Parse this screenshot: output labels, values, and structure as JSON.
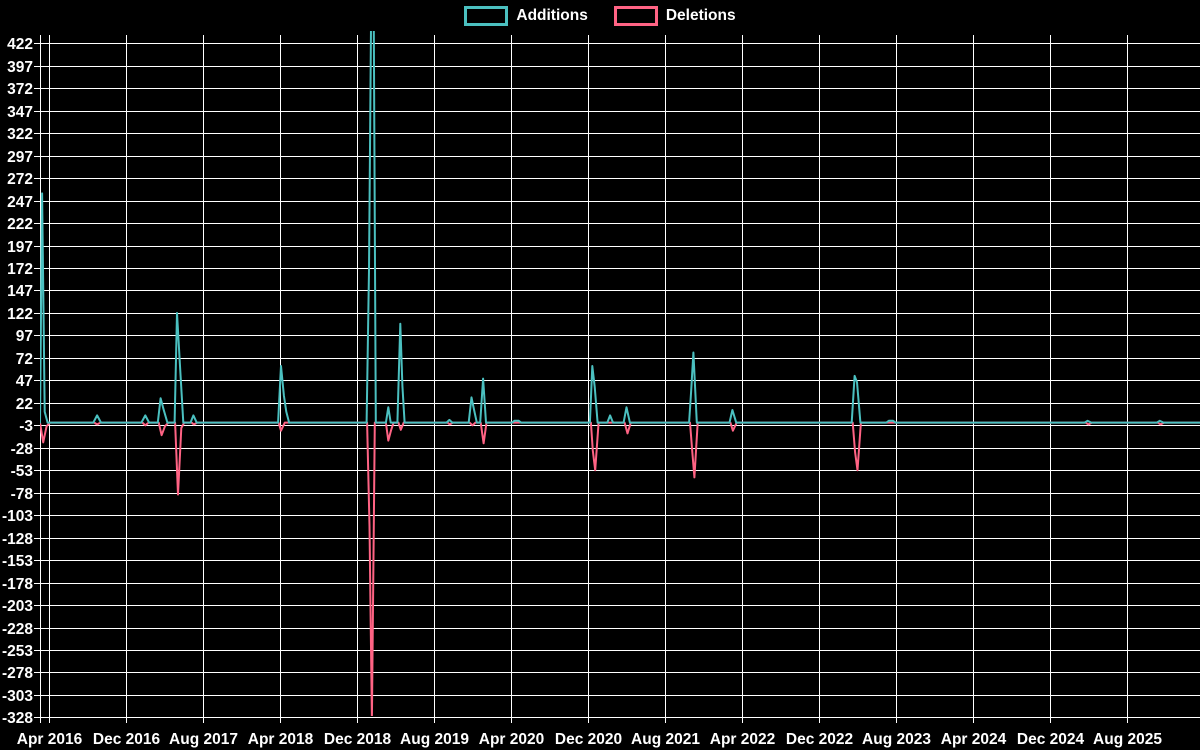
{
  "chart_data": {
    "type": "line",
    "title": "",
    "legend": [
      {
        "label": "Additions",
        "color": "#4bc0c0"
      },
      {
        "label": "Deletions",
        "color": "#ff6384"
      }
    ],
    "layout": {
      "background": "#000000",
      "grid_color": "#ffffff",
      "text_color": "#ffffff",
      "legend_position": "top",
      "grid": true
    },
    "y_axis": {
      "min": -328,
      "max": 422,
      "step": 25,
      "ticks": [
        422,
        397,
        372,
        347,
        322,
        297,
        272,
        247,
        222,
        197,
        172,
        147,
        122,
        97,
        72,
        47,
        22,
        -3,
        -28,
        -53,
        -78,
        -103,
        -128,
        -153,
        -178,
        -203,
        -228,
        -253,
        -278,
        -303,
        -328
      ]
    },
    "x_axis": {
      "labels": [
        "Apr 2016",
        "Dec 2016",
        "Aug 2017",
        "Apr 2018",
        "Dec 2018",
        "Aug 2019",
        "Apr 2020",
        "Dec 2020",
        "Aug 2021",
        "Apr 2022",
        "Dec 2022",
        "Aug 2023",
        "Apr 2024",
        "Dec 2024",
        "Aug 2025"
      ],
      "label_interval_months": 8,
      "start_label": "Apr 2016"
    },
    "series": [
      {
        "name": "Additions",
        "color": "#4bc0c0",
        "points_months_since_apr2016_value": [
          [
            -0.94,
            0
          ],
          [
            -0.72,
            255
          ],
          [
            -0.45,
            12
          ],
          [
            -0.15,
            0
          ],
          [
            4.6,
            0
          ],
          [
            5.0,
            8
          ],
          [
            5.4,
            0
          ],
          [
            9.6,
            0
          ],
          [
            10.0,
            8
          ],
          [
            10.4,
            0
          ],
          [
            11.3,
            0
          ],
          [
            11.6,
            27
          ],
          [
            11.9,
            15
          ],
          [
            12.3,
            0
          ],
          [
            13.05,
            0
          ],
          [
            13.3,
            122
          ],
          [
            13.6,
            65
          ],
          [
            13.95,
            0
          ],
          [
            14.7,
            0
          ],
          [
            15.0,
            8
          ],
          [
            15.35,
            0
          ],
          [
            23.8,
            0
          ],
          [
            24.1,
            63
          ],
          [
            24.4,
            30
          ],
          [
            24.65,
            12
          ],
          [
            24.95,
            0
          ],
          [
            33.0,
            0
          ],
          [
            33.25,
            170
          ],
          [
            33.45,
            440
          ],
          [
            33.75,
            440
          ],
          [
            33.95,
            0
          ],
          [
            35.0,
            0
          ],
          [
            35.25,
            17
          ],
          [
            35.5,
            0
          ],
          [
            36.2,
            0
          ],
          [
            36.5,
            110
          ],
          [
            36.72,
            41
          ],
          [
            36.95,
            0
          ],
          [
            41.3,
            0
          ],
          [
            41.6,
            3
          ],
          [
            41.9,
            0
          ],
          [
            43.6,
            0
          ],
          [
            43.9,
            28
          ],
          [
            44.15,
            15
          ],
          [
            44.45,
            0
          ],
          [
            44.8,
            0
          ],
          [
            45.1,
            49
          ],
          [
            45.4,
            0
          ],
          [
            48.1,
            0
          ],
          [
            48.35,
            2
          ],
          [
            48.8,
            2
          ],
          [
            49.05,
            0
          ],
          [
            56.2,
            0
          ],
          [
            56.45,
            63
          ],
          [
            56.7,
            40
          ],
          [
            57.0,
            0
          ],
          [
            58.0,
            0
          ],
          [
            58.3,
            8
          ],
          [
            58.6,
            0
          ],
          [
            59.7,
            0
          ],
          [
            60.0,
            17
          ],
          [
            60.35,
            0
          ],
          [
            66.5,
            0
          ],
          [
            66.72,
            36
          ],
          [
            66.95,
            78
          ],
          [
            67.3,
            0
          ],
          [
            70.7,
            0
          ],
          [
            71.0,
            14
          ],
          [
            71.4,
            0
          ],
          [
            83.4,
            0
          ],
          [
            83.7,
            52
          ],
          [
            83.95,
            45
          ],
          [
            84.3,
            0
          ],
          [
            87.0,
            0
          ],
          [
            87.25,
            2
          ],
          [
            87.7,
            2
          ],
          [
            87.95,
            0
          ],
          [
            107.6,
            0
          ],
          [
            107.9,
            2
          ],
          [
            108.3,
            0
          ],
          [
            115.1,
            0
          ],
          [
            115.4,
            2
          ],
          [
            115.8,
            0
          ],
          [
            119.6,
            0
          ]
        ]
      },
      {
        "name": "Deletions",
        "color": "#ff6384",
        "points_months_since_apr2016_value": [
          [
            -0.94,
            0
          ],
          [
            -0.6,
            -22
          ],
          [
            -0.25,
            -4
          ],
          [
            0.1,
            0
          ],
          [
            4.7,
            0
          ],
          [
            5.0,
            -2
          ],
          [
            5.35,
            0
          ],
          [
            9.7,
            0
          ],
          [
            10.0,
            -3
          ],
          [
            10.35,
            0
          ],
          [
            11.4,
            0
          ],
          [
            11.7,
            -14
          ],
          [
            12.05,
            -4
          ],
          [
            12.4,
            0
          ],
          [
            13.1,
            0
          ],
          [
            13.4,
            -80
          ],
          [
            13.75,
            -6
          ],
          [
            14.05,
            0
          ],
          [
            14.8,
            0
          ],
          [
            15.05,
            -2
          ],
          [
            15.4,
            0
          ],
          [
            23.85,
            0
          ],
          [
            24.1,
            -9
          ],
          [
            24.5,
            0
          ],
          [
            33.05,
            0
          ],
          [
            33.3,
            -115
          ],
          [
            33.55,
            -330
          ],
          [
            33.85,
            0
          ],
          [
            35.0,
            0
          ],
          [
            35.25,
            -20
          ],
          [
            35.55,
            -8
          ],
          [
            35.8,
            0
          ],
          [
            36.3,
            0
          ],
          [
            36.55,
            -8
          ],
          [
            36.85,
            0
          ],
          [
            41.4,
            0
          ],
          [
            41.65,
            -2
          ],
          [
            41.95,
            0
          ],
          [
            43.7,
            0
          ],
          [
            44.0,
            -3
          ],
          [
            44.3,
            0
          ],
          [
            44.85,
            0
          ],
          [
            45.15,
            -23
          ],
          [
            45.45,
            0
          ],
          [
            56.3,
            0
          ],
          [
            56.5,
            -31
          ],
          [
            56.75,
            -53
          ],
          [
            57.1,
            0
          ],
          [
            59.8,
            0
          ],
          [
            60.1,
            -12
          ],
          [
            60.45,
            0
          ],
          [
            66.6,
            0
          ],
          [
            66.85,
            -34
          ],
          [
            67.05,
            -61
          ],
          [
            67.4,
            0
          ],
          [
            70.8,
            0
          ],
          [
            71.05,
            -9
          ],
          [
            71.45,
            0
          ],
          [
            83.5,
            0
          ],
          [
            83.75,
            -33
          ],
          [
            84.0,
            -53
          ],
          [
            84.35,
            0
          ],
          [
            107.7,
            0
          ],
          [
            108.0,
            -2
          ],
          [
            108.35,
            0
          ],
          [
            115.2,
            0
          ],
          [
            115.5,
            -2
          ],
          [
            115.85,
            0
          ],
          [
            119.6,
            0
          ]
        ]
      }
    ]
  }
}
